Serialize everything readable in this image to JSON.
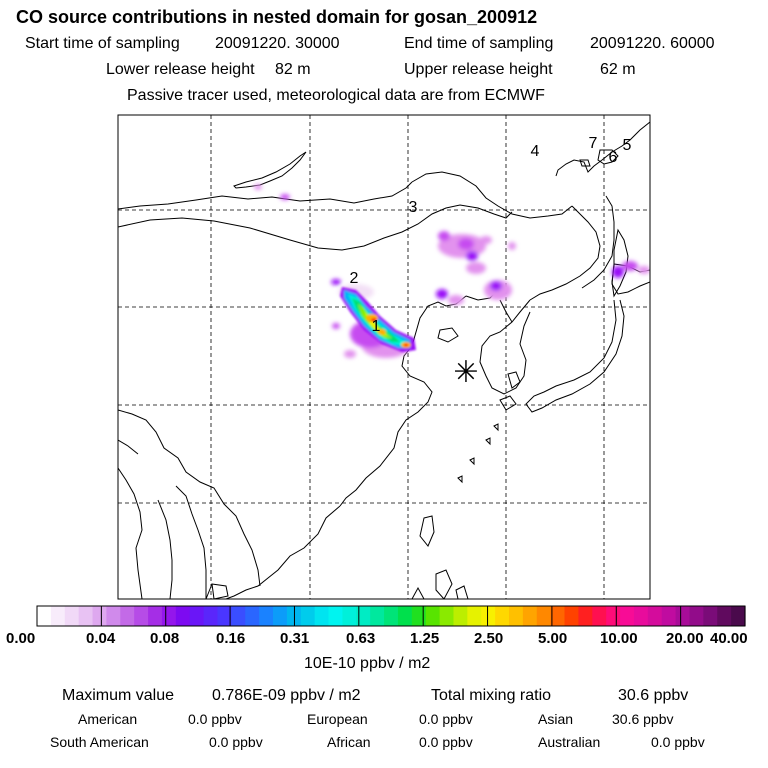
{
  "header": {
    "title": "CO  source contributions in nested domain for gosan_200912",
    "start_time_label": "Start time of sampling",
    "start_time_value": "20091220. 30000",
    "end_time_label": "End time of sampling",
    "end_time_value": "20091220. 60000",
    "lower_height_label": "Lower release height",
    "lower_height_value": "82 m",
    "upper_height_label": "Upper release height",
    "upper_height_value": "62 m",
    "note": "Passive tracer used, meteorological data are from ECMWF"
  },
  "map": {
    "markers": [
      "1",
      "2",
      "3",
      "4",
      "5",
      "6",
      "7"
    ],
    "receptor_symbol": "✳",
    "plume_colors": [
      "#f3e0f6",
      "#e292ee",
      "#c64cf0",
      "#9a10f8",
      "#4a40ff",
      "#00b4f8",
      "#00f0d8",
      "#00e070",
      "#80ee00",
      "#f4f400",
      "#ffb000",
      "#ff3000"
    ]
  },
  "legend": {
    "ticks": [
      "0.00",
      "0.04",
      "0.08",
      "0.16",
      "0.31",
      "0.63",
      "1.25",
      "2.50",
      "5.00",
      "10.00",
      "20.00",
      "40.00"
    ],
    "unit": "10E-10 ppbv / m2",
    "colors": [
      "#ffffff",
      "#f8ecfb",
      "#f1d9f7",
      "#e8c2f3",
      "#dea8ef",
      "#d08aeb",
      "#c36ae7",
      "#b64ce7",
      "#a52ee6",
      "#9416ec",
      "#7d0af1",
      "#6a16f7",
      "#5a26fb",
      "#4a36ff",
      "#3a4eff",
      "#2a66ff",
      "#1a82ff",
      "#0c9cf9",
      "#00b6f0",
      "#00ccec",
      "#00e4f0",
      "#00f4f0",
      "#00f0da",
      "#00ecc4",
      "#00e89e",
      "#00e478",
      "#00e04c",
      "#20e020",
      "#58e400",
      "#8aea00",
      "#bcee00",
      "#e6f200",
      "#f8f000",
      "#ffd800",
      "#ffc000",
      "#ffa400",
      "#ff8800",
      "#ff6600",
      "#ff4200",
      "#ff2020",
      "#ff1050",
      "#ff0c78",
      "#f80c96",
      "#e80c9c",
      "#d40c9c",
      "#c00ca0",
      "#a80c98",
      "#920c8a",
      "#7a0c78",
      "#600a5e",
      "#4a0a4c"
    ]
  },
  "stats": {
    "max_label": "Maximum value",
    "max_value": "0.786E-09 ppbv / m2",
    "total_label": "Total mixing ratio",
    "total_value": "30.6 ppbv"
  },
  "regions": [
    {
      "name": "American",
      "value": "0.0 ppbv"
    },
    {
      "name": "European",
      "value": "0.0 ppbv"
    },
    {
      "name": "Asian",
      "value": "30.6 ppbv"
    },
    {
      "name": "South American",
      "value": "0.0 ppbv"
    },
    {
      "name": "African",
      "value": "0.0 ppbv"
    },
    {
      "name": "Australian",
      "value": "0.0 ppbv"
    }
  ]
}
